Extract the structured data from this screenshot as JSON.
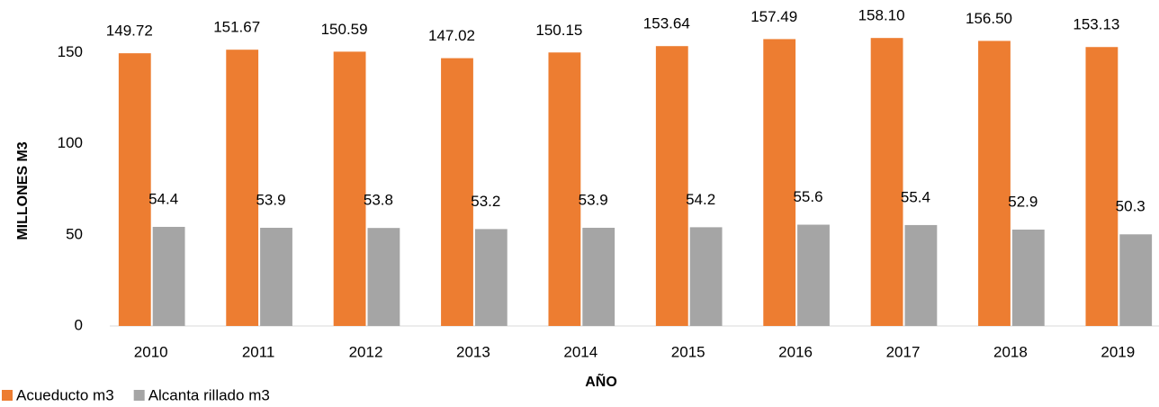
{
  "chart_data": {
    "type": "bar",
    "x_label": "AÑO",
    "y_label": "MILLONES M3",
    "categories": [
      "2010",
      "2011",
      "2012",
      "2013",
      "2014",
      "2015",
      "2016",
      "2017",
      "2018",
      "2019"
    ],
    "series": [
      {
        "name": "Acueducto m3",
        "color": "#ED7D31",
        "values": [
          149.72,
          151.67,
          150.59,
          147.02,
          150.15,
          153.64,
          157.49,
          158.1,
          156.5,
          153.13
        ],
        "value_labels": [
          "149.72",
          "151.67",
          "150.59",
          "147.02",
          "150.15",
          "153.64",
          "157.49",
          "158.10",
          "156.50",
          "153.13"
        ]
      },
      {
        "name": "Alcanta rillado m3",
        "color": "#A5A5A5",
        "values": [
          54.4,
          53.9,
          53.8,
          53.2,
          53.9,
          54.2,
          55.6,
          55.4,
          52.9,
          50.3
        ]
      }
    ],
    "ylim": [
      0,
      175
    ],
    "yticks": [
      0,
      50,
      100,
      150
    ],
    "grid": false,
    "legend": "bottom-left"
  }
}
